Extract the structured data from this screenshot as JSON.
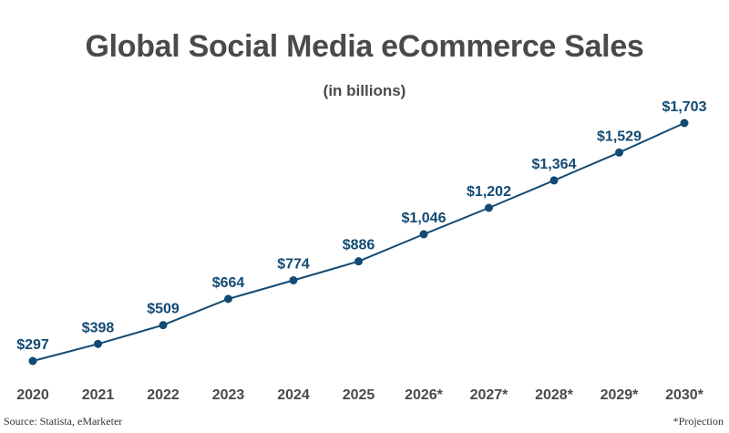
{
  "chart_data": {
    "type": "line",
    "title": "Global Social Media eCommerce Sales",
    "subtitle": "(in billions)",
    "categories": [
      "2020",
      "2021",
      "2022",
      "2023",
      "2024",
      "2025",
      "2026*",
      "2027*",
      "2028*",
      "2029*",
      "2030*"
    ],
    "values": [
      297,
      398,
      509,
      664,
      774,
      886,
      1046,
      1202,
      1364,
      1529,
      1703
    ],
    "value_labels": [
      "$297",
      "$398",
      "$509",
      "$664",
      "$774",
      "$886",
      "$1,046",
      "$1,202",
      "$1,364",
      "$1,529",
      "$1,703"
    ],
    "xlabel": "",
    "ylabel": "",
    "grid": false,
    "legend": "none",
    "colors": {
      "line": "#124a73",
      "label": "#124a73",
      "tick": "#4a4a4a"
    }
  },
  "footer": {
    "source": "Source: Statista, eMarketer",
    "note": "*Projection"
  }
}
